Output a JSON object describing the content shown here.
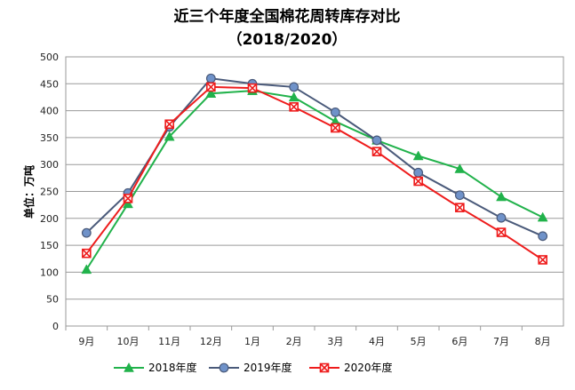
{
  "chart_data": {
    "type": "line",
    "title": "近三个年度全国棉花周转库存对比",
    "subtitle": "（2018/2020）",
    "ylabel": "单位：万吨",
    "xlabel": "",
    "categories": [
      "9月",
      "10月",
      "11月",
      "12月",
      "1月",
      "2月",
      "3月",
      "4月",
      "5月",
      "6月",
      "7月",
      "8月"
    ],
    "ylim": [
      0,
      500
    ],
    "yticks": [
      0,
      50,
      100,
      150,
      200,
      250,
      300,
      350,
      400,
      450,
      500
    ],
    "grid": true,
    "legend_position": "bottom",
    "series": [
      {
        "name": "2018年度",
        "color": "#21b24b",
        "marker": "triangle",
        "values": [
          105,
          227,
          352,
          432,
          437,
          425,
          380,
          345,
          316,
          292,
          240,
          202
        ]
      },
      {
        "name": "2019年度",
        "color": "#4a5a7a",
        "marker_fill": "#6f92c9",
        "marker": "circle",
        "values": [
          173,
          247,
          370,
          460,
          450,
          444,
          397,
          345,
          285,
          243,
          201,
          167
        ]
      },
      {
        "name": "2020年度",
        "color": "#ee1c1c",
        "marker": "square-x",
        "values": [
          135,
          237,
          375,
          444,
          442,
          407,
          368,
          324,
          269,
          220,
          174,
          123
        ]
      }
    ]
  }
}
